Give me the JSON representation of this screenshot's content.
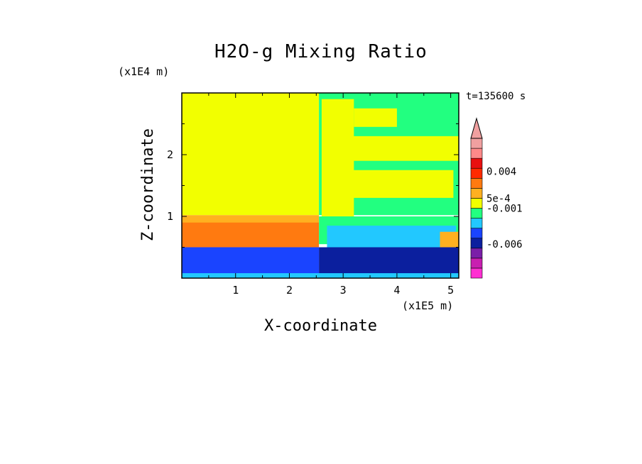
{
  "chart_data": {
    "type": "heatmap",
    "title": "H2O-g Mixing Ratio",
    "xlabel": "X-coordinate",
    "ylabel": "Z-coordinate",
    "x_unit": "(x1E5 m)",
    "y_unit": "(x1E4 m)",
    "time_label": "t=135600 s",
    "xlim": [
      0,
      5.15
    ],
    "ylim": [
      0,
      3.0
    ],
    "xticks": [
      1,
      2,
      3,
      4,
      5
    ],
    "yticks": [
      1,
      2
    ],
    "colorbar": {
      "colors": [
        "#ff2fd2",
        "#c81fb0",
        "#7a1fa8",
        "#0b1f9e",
        "#1a44ff",
        "#22c8ff",
        "#22ff80",
        "#f2ff00",
        "#ffb020",
        "#ff7a10",
        "#ff2a00",
        "#e81010",
        "#ff8a8a",
        "#f0a0a0"
      ],
      "labels": [
        {
          "text": "0.004",
          "pos": 10.7
        },
        {
          "text": "5e-4",
          "pos": 8.0
        },
        {
          "text": "-0.001",
          "pos": 7.0
        },
        {
          "text": "-0.006",
          "pos": 3.4
        }
      ],
      "extend": "max"
    },
    "regions": [
      {
        "x": [
          0,
          2.55
        ],
        "z": [
          1.02,
          3.0
        ],
        "level": 7
      },
      {
        "x": [
          2.55,
          5.15
        ],
        "z": [
          1.02,
          3.0
        ],
        "level": 6
      },
      {
        "x": [
          2.95,
          5.15
        ],
        "z": [
          2.4,
          2.98
        ],
        "level": 6
      },
      {
        "x": [
          2.6,
          3.2
        ],
        "z": [
          1.0,
          2.9
        ],
        "level": 7
      },
      {
        "x": [
          3.2,
          4.0
        ],
        "z": [
          2.45,
          2.75
        ],
        "level": 7
      },
      {
        "x": [
          2.75,
          5.15
        ],
        "z": [
          1.9,
          2.3
        ],
        "level": 7
      },
      {
        "x": [
          2.7,
          5.05
        ],
        "z": [
          1.3,
          1.75
        ],
        "level": 7
      },
      {
        "x": [
          3.4,
          4.7
        ],
        "z": [
          2.05,
          2.15
        ],
        "level": 7
      },
      {
        "x": [
          0,
          2.55
        ],
        "z": [
          0.55,
          1.02
        ],
        "level": 8
      },
      {
        "x": [
          0,
          2.55
        ],
        "z": [
          0.5,
          0.9
        ],
        "level": 9
      },
      {
        "x": [
          2.55,
          5.15
        ],
        "z": [
          0.55,
          1.0
        ],
        "level": 6
      },
      {
        "x": [
          2.7,
          5.1
        ],
        "z": [
          0.5,
          0.85
        ],
        "level": 5
      },
      {
        "x": [
          4.8,
          5.15
        ],
        "z": [
          0.4,
          0.75
        ],
        "level": 8
      },
      {
        "x": [
          0,
          2.55
        ],
        "z": [
          0.0,
          0.5
        ],
        "level": 4
      },
      {
        "x": [
          2.55,
          5.15
        ],
        "z": [
          0.0,
          0.5
        ],
        "level": 3
      },
      {
        "x": [
          0,
          5.15
        ],
        "z": [
          0.0,
          0.08
        ],
        "level": 5
      }
    ]
  }
}
